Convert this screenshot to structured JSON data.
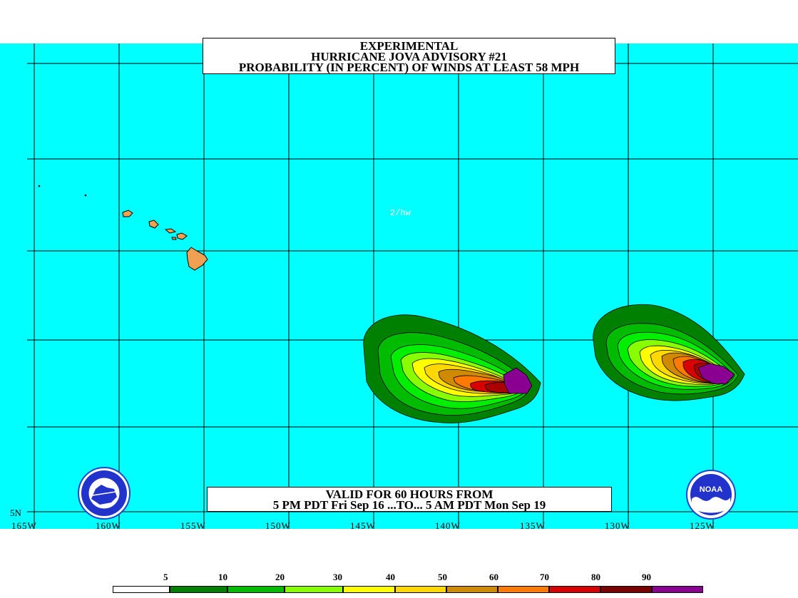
{
  "title": {
    "line1": "EXPERIMENTAL",
    "line2": "HURRICANE JOVA ADVISORY #21",
    "line3": "PROBABILITY (IN PERCENT) OF WINDS AT LEAST 58 MPH"
  },
  "valid": {
    "line1": "VALID FOR 60 HOURS FROM",
    "line2": "5 PM PDT Fri Sep 16 ...TO... 5 AM PDT Mon Sep 19"
  },
  "map_label": "2/hw",
  "longitude_labels": [
    "165W",
    "160W",
    "155W",
    "150W",
    "145W",
    "140W",
    "135W",
    "130W",
    "125W"
  ],
  "latitude_label": "5N",
  "legend": {
    "ticks": [
      "5",
      "10",
      "20",
      "30",
      "40",
      "50",
      "60",
      "70",
      "80",
      "90"
    ],
    "colors": [
      "#ffffff",
      "#008000",
      "#00bb00",
      "#00ee00",
      "#88ff00",
      "#ffff00",
      "#ffd800",
      "#d08a00",
      "#ff7a00",
      "#d80000",
      "#aa0000",
      "#7a0000",
      "#8a0090"
    ]
  },
  "colors": {
    "ocean": "#00ffff",
    "land": "#f0a050",
    "grid": "#000000"
  },
  "logos": {
    "left": "NATIONAL WEATHER SERVICE",
    "right": "NOAA"
  }
}
